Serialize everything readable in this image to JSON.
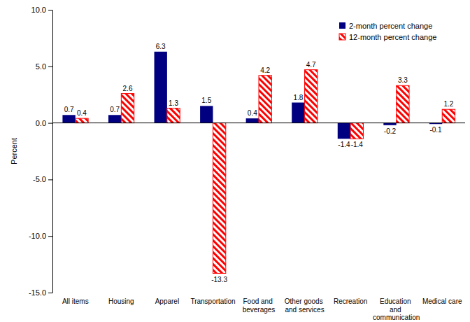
{
  "chart_data": {
    "type": "bar",
    "y_label": "Percent",
    "categories": [
      "All items",
      "Housing",
      "Apparel",
      "Transportation",
      "Food and beverages",
      "Other goods and services",
      "Recreation",
      "Education and communication",
      "Medical care"
    ],
    "series": [
      {
        "name": "2-month percent change",
        "color": "#000080",
        "values": [
          0.7,
          0.7,
          6.3,
          1.5,
          0.4,
          1.8,
          -1.4,
          -0.2,
          -0.1
        ]
      },
      {
        "name": "12-month percent change",
        "color": "#ff0000",
        "values": [
          0.4,
          2.6,
          1.3,
          -13.3,
          4.2,
          4.7,
          -1.4,
          3.3,
          1.2
        ]
      }
    ],
    "ylim": [
      -15,
      10
    ],
    "yticks": [
      {
        "value": -15,
        "label": "-15.0"
      },
      {
        "value": -10,
        "label": "-10.0"
      },
      {
        "value": -5,
        "label": "-5.0"
      },
      {
        "value": 0,
        "label": "0.0"
      },
      {
        "value": 5,
        "label": "5.0"
      },
      {
        "value": 10,
        "label": "10.0"
      }
    ],
    "grid": false,
    "legend": "top-right",
    "data_labels": true
  }
}
